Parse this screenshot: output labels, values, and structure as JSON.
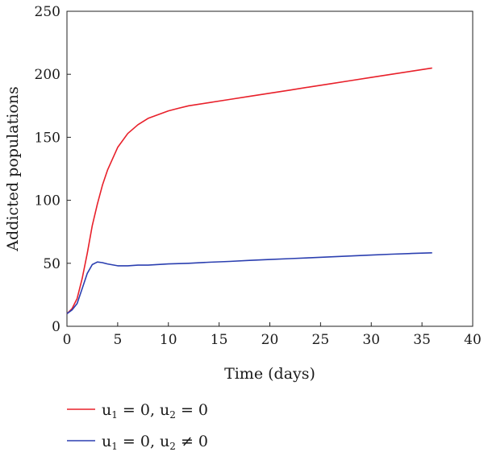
{
  "chart_data": {
    "type": "line",
    "title": "",
    "xlabel": "Time (days)",
    "ylabel": "Addicted populations",
    "xlim": [
      0,
      40
    ],
    "ylim": [
      0,
      250
    ],
    "xticks": [
      0,
      5,
      10,
      15,
      20,
      25,
      30,
      35,
      40
    ],
    "yticks": [
      0,
      50,
      100,
      150,
      200,
      250
    ],
    "grid": false,
    "legend_position": "bottom-left, below plot",
    "series": [
      {
        "name": "u1 = 0, u2 = 0",
        "legend_parts": {
          "a": "u",
          "a_sub": "1",
          "mid": " = 0, u",
          "b_sub": "2",
          "end": " = 0"
        },
        "color": "#e8202a",
        "x": [
          0,
          0.5,
          1,
          1.5,
          2,
          2.5,
          3,
          3.5,
          4,
          5,
          6,
          7,
          8,
          9,
          10,
          11,
          12,
          14,
          16,
          18,
          20,
          22,
          24,
          26,
          28,
          30,
          32,
          34,
          36
        ],
        "y": [
          10,
          14,
          22,
          38,
          58,
          80,
          97,
          112,
          124,
          142,
          153,
          160,
          165,
          168,
          171,
          173,
          175,
          177.5,
          180,
          182.5,
          185,
          187.5,
          190,
          192.5,
          195,
          197.5,
          200,
          202.5,
          205
        ]
      },
      {
        "name": "u1 = 0, u2 ≠ 0",
        "legend_parts": {
          "a": "u",
          "a_sub": "1",
          "mid": " = 0, u",
          "b_sub": "2",
          "end": " ≠ 0"
        },
        "color": "#2b3fb0",
        "x": [
          0,
          0.5,
          1,
          1.5,
          2,
          2.5,
          3,
          3.5,
          4,
          5,
          6,
          7,
          8,
          10,
          12,
          14,
          16,
          18,
          20,
          22,
          24,
          26,
          28,
          30,
          32,
          34,
          36
        ],
        "y": [
          10,
          13,
          18,
          30,
          42,
          49,
          51,
          50.5,
          49.5,
          48,
          48,
          48.5,
          48.5,
          49.5,
          50,
          50.8,
          51.5,
          52.3,
          53,
          53.7,
          54.4,
          55.1,
          55.8,
          56.5,
          57.2,
          57.8,
          58.3
        ]
      }
    ]
  }
}
